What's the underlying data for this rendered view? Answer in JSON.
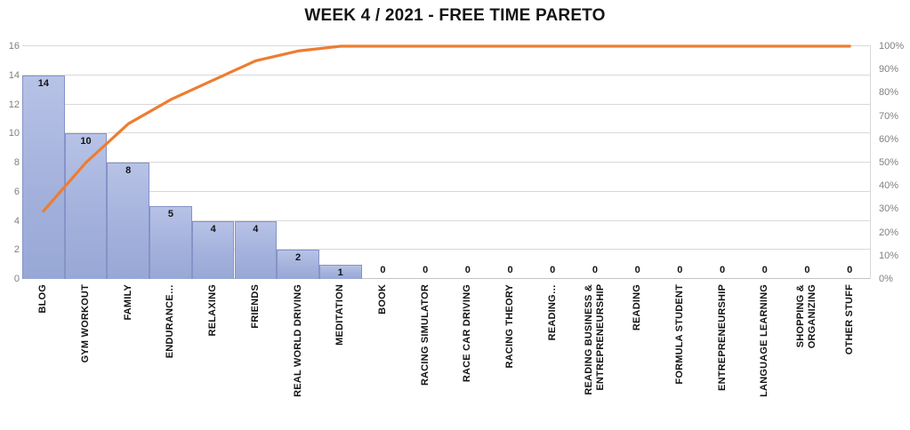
{
  "chart_data": {
    "type": "bar",
    "subtype": "pareto-combo",
    "title": "WEEK 4 / 2021 - FREE TIME PARETO",
    "grid": true,
    "legend": false,
    "categories": [
      "BLOG",
      "GYM WORKOUT",
      "FAMILY",
      "ENDURANCE…",
      "RELAXING",
      "FRIENDS",
      "REAL WORLD DRIVING",
      "MEDITATION",
      "BOOK",
      "RACING SIMULATOR",
      "RACE CAR DRIVING",
      "RACING THEORY",
      "READING…",
      "READING BUSINESS &\nENTREPRENEURSHIP",
      "READING",
      "FORMULA STUDENT",
      "ENTREPRENEURSHIP",
      "LANGUAGE LEARNING",
      "SHOPPING &\nORGANIZING",
      "OTHER STUFF"
    ],
    "values": [
      14,
      10,
      8,
      5,
      4,
      4,
      2,
      1,
      0,
      0,
      0,
      0,
      0,
      0,
      0,
      0,
      0,
      0,
      0,
      0
    ],
    "data_labels": [
      "14",
      "10",
      "8",
      "5",
      "4",
      "4",
      "2",
      "1",
      "0",
      "0",
      "0",
      "0",
      "0",
      "0",
      "0",
      "0",
      "0",
      "0",
      "0",
      "0"
    ],
    "cumulative_pct": [
      29.17,
      50,
      66.67,
      77.08,
      85.42,
      93.75,
      97.92,
      100,
      100,
      100,
      100,
      100,
      100,
      100,
      100,
      100,
      100,
      100,
      100,
      100
    ],
    "left_axis": {
      "min": 0,
      "max": 16,
      "step": 2,
      "ticks": [
        0,
        2,
        4,
        6,
        8,
        10,
        12,
        14,
        16
      ]
    },
    "right_axis": {
      "min": 0,
      "max": 100,
      "step": 10,
      "ticks": [
        "0%",
        "10%",
        "20%",
        "30%",
        "40%",
        "50%",
        "60%",
        "70%",
        "80%",
        "90%",
        "100%"
      ]
    },
    "colors": {
      "bar_fill": "#a3b1dc",
      "bar_border": "#8593c7",
      "line": "#ed7d31",
      "gridline": "#d9d9d9",
      "axis_text": "#7f7f7f",
      "label_text": "#141414"
    }
  }
}
